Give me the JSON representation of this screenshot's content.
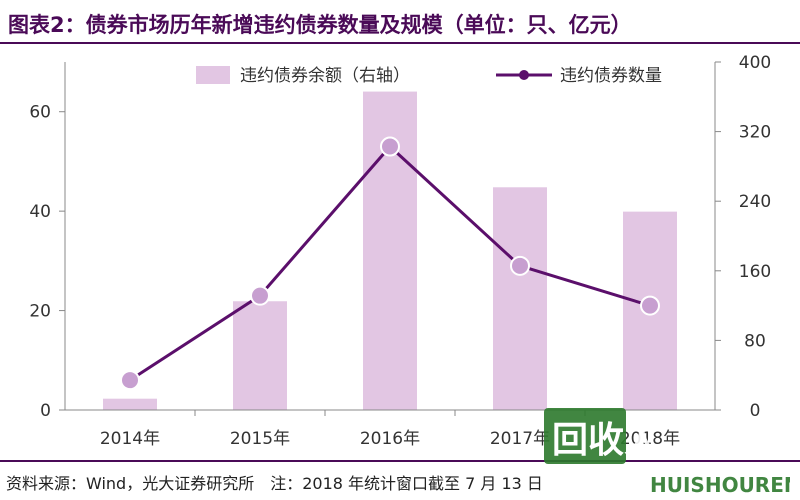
{
  "title": "图表2：债券市场历年新增违约债券数量及规模（单位：只、亿元）",
  "source": "资料来源：Wind，光大证券研究所　注：2018 年统计窗口截至 7 月 13 日",
  "watermark": {
    "text_main": "回收人",
    "text_sub": "HUISHOUREN"
  },
  "colors": {
    "bar": "#e2c6e3",
    "line": "#5b0f6b",
    "marker": "#c79fd0",
    "axis": "#888888",
    "title": "#4a0a57"
  },
  "chart_data": {
    "type": "bar+line",
    "categories": [
      "2014年",
      "2015年",
      "2016年",
      "2017年",
      "2018年"
    ],
    "series": [
      {
        "name": "违约债券余额（右轴）",
        "type": "bar",
        "axis": "right",
        "values": [
          13,
          125,
          366,
          256,
          228
        ]
      },
      {
        "name": "违约债券数量",
        "type": "line",
        "axis": "left",
        "values": [
          6,
          23,
          53,
          29,
          21
        ]
      }
    ],
    "y_left": {
      "min": 0,
      "max": 70,
      "ticks": [
        0,
        20,
        40,
        60
      ]
    },
    "y_right": {
      "min": 0,
      "max": 400,
      "ticks": [
        0,
        80,
        160,
        240,
        320,
        400
      ]
    },
    "legend_position": "top",
    "grid": false
  }
}
